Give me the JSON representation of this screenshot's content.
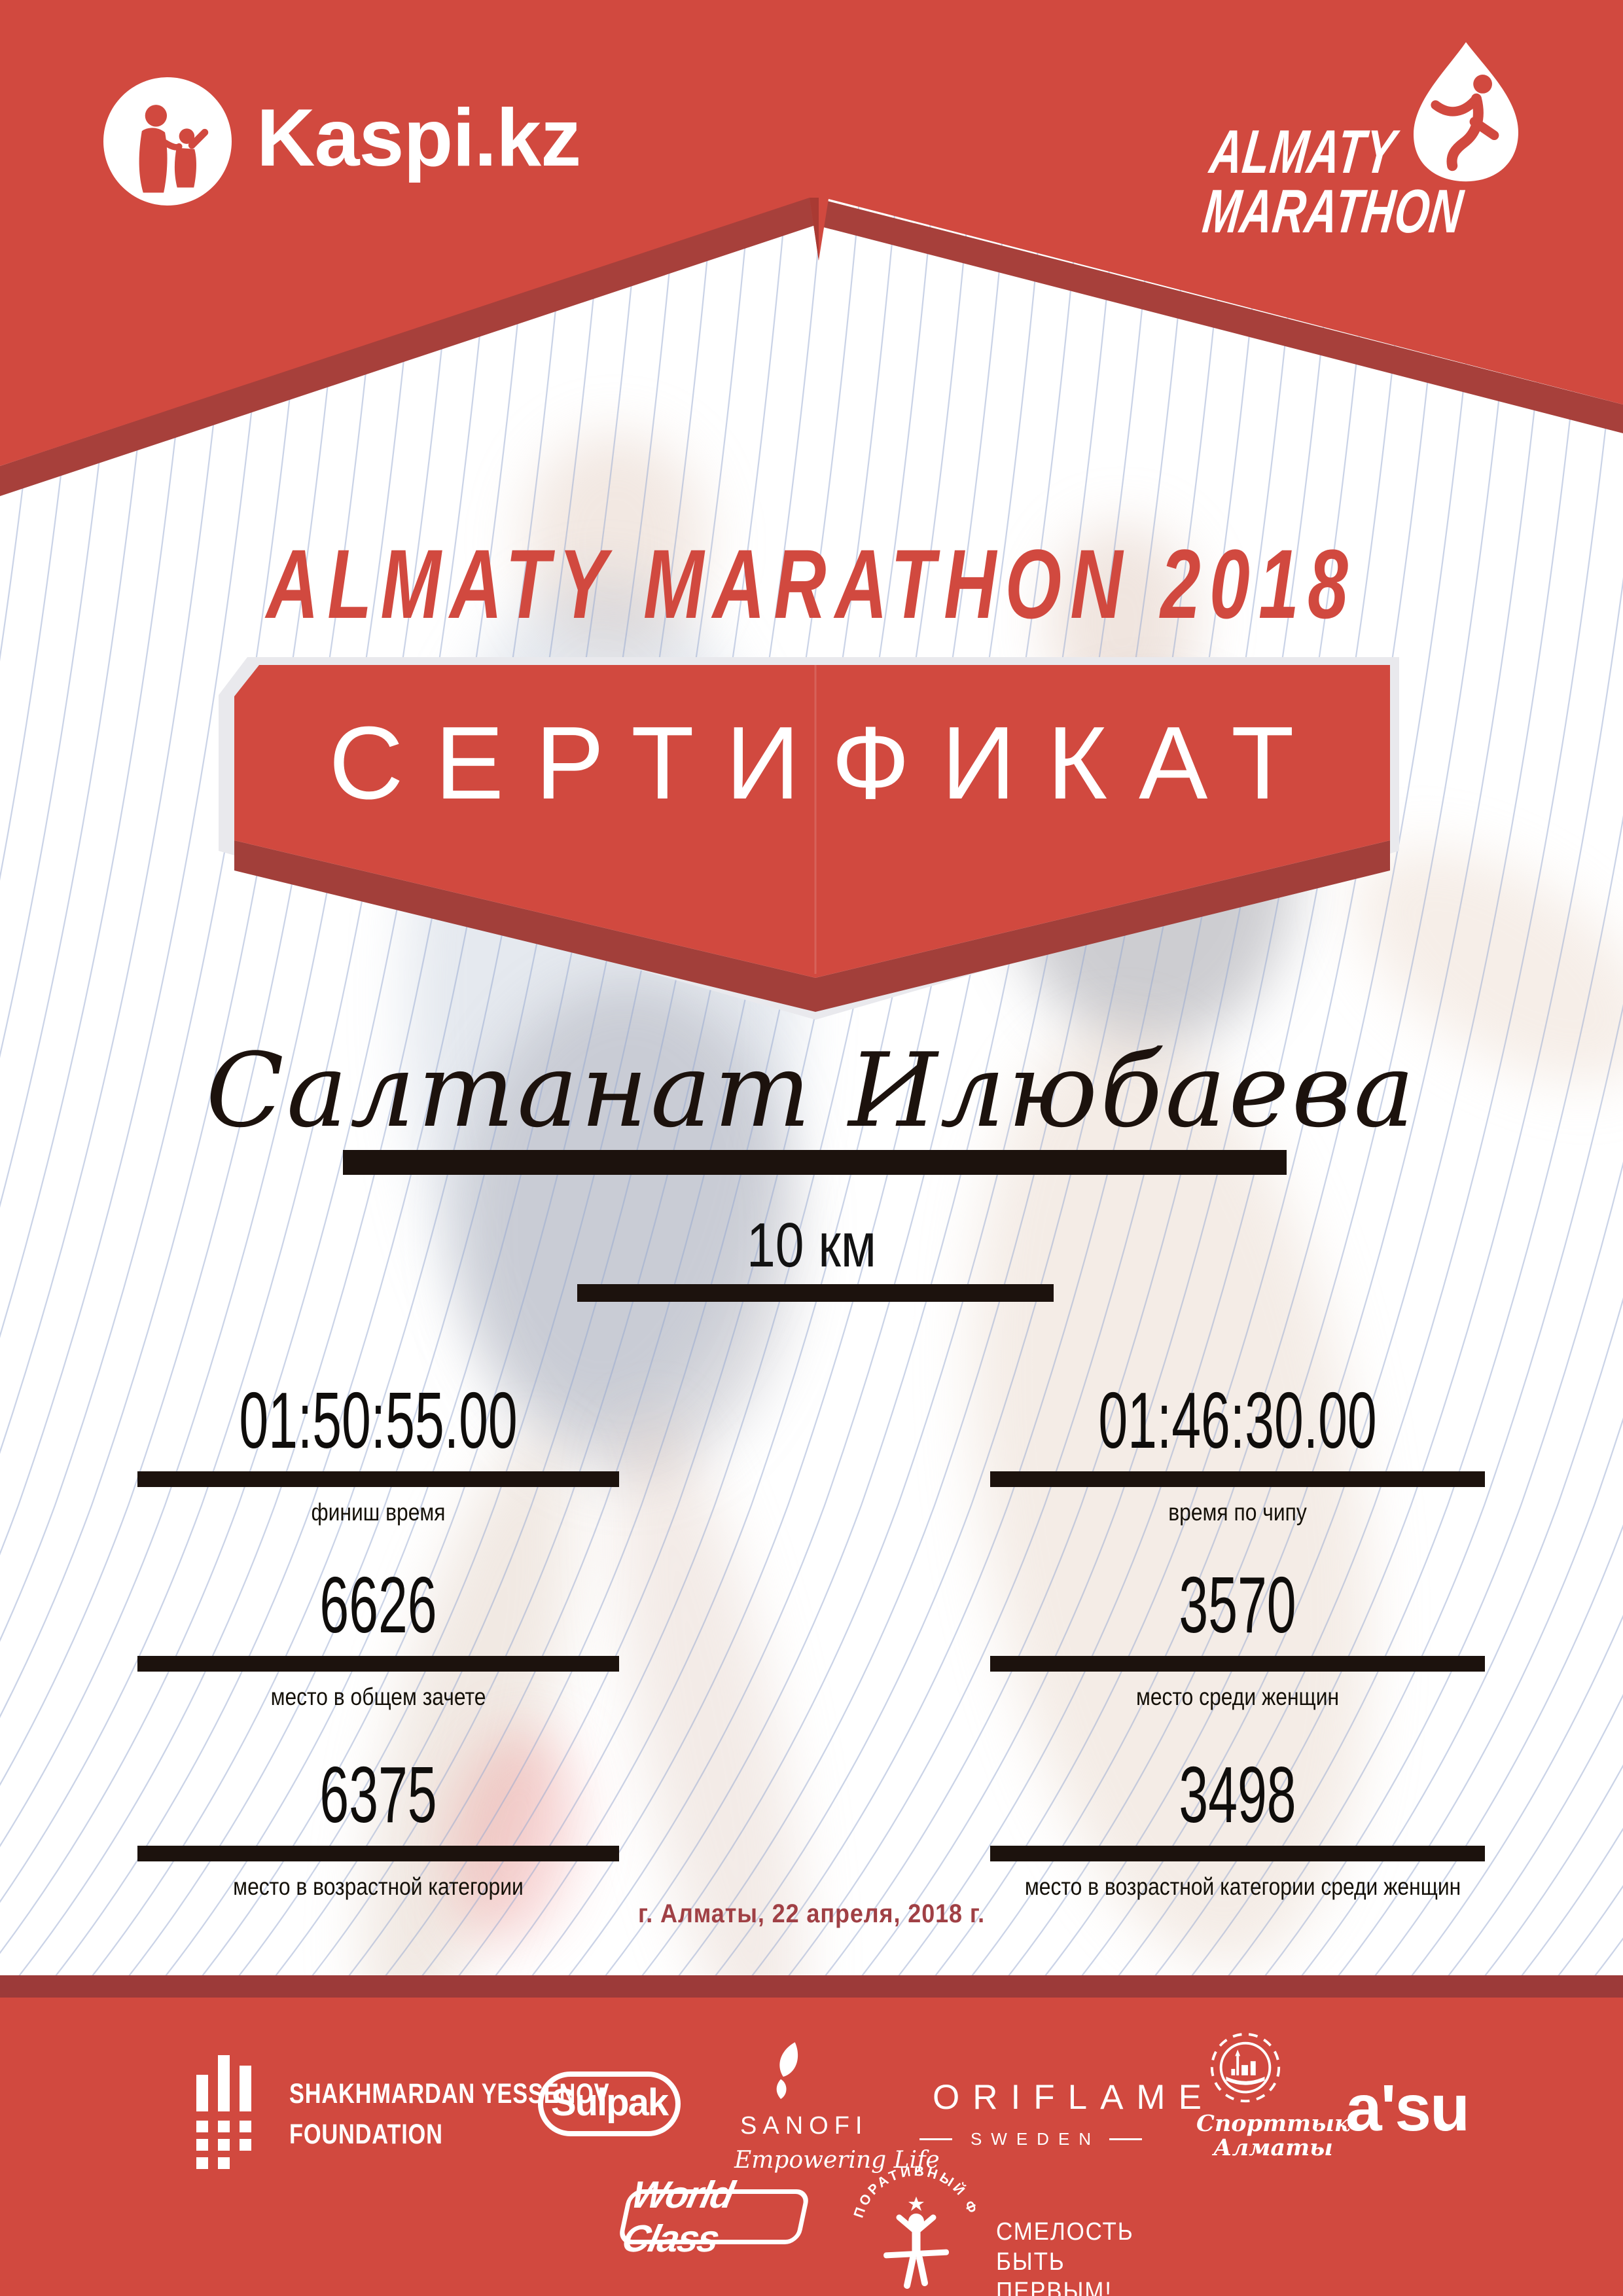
{
  "certificate": {
    "title": "ALMATY MARATHON 2018",
    "label": "СЕРТИФИКАТ",
    "name": "Салтанат Илюбаева",
    "distance": "10 км",
    "date": "г. Алматы, 22 апреля, 2018 г."
  },
  "header": {
    "kaspi": "Kaspi.kz",
    "marathon_line1": "ALMATY",
    "marathon_line2": "MARATHON"
  },
  "stats": {
    "finish_time": {
      "value": "01:50:55.00",
      "label": "финиш время"
    },
    "chip_time": {
      "value": "01:46:30.00",
      "label": "время по чипу"
    },
    "overall_place": {
      "value": "6626",
      "label": "место в общем зачете"
    },
    "women_place": {
      "value": "3570",
      "label": "место среди женщин"
    },
    "age_place": {
      "value": "6375",
      "label": "место в возрастной категории"
    },
    "age_women_place": {
      "value": "3498",
      "label": "место в возрастной категории среди женщин"
    }
  },
  "sponsors": {
    "yessenov": {
      "line1": "SHAKHMARDAN YESSENOV",
      "line2": "FOUNDATION"
    },
    "sulpak": "Sulpak",
    "sanofi": {
      "name": "SANOFI",
      "tagline": "Empowering Life"
    },
    "oriflame": {
      "name": "ORIFLAME",
      "sub": "SWEDEN"
    },
    "sporttyk": {
      "line1": "Спорттык",
      "line2": "Алматы"
    },
    "asu": "a'su",
    "worldclass": "World Class",
    "fond": {
      "arc": "КОРПОРАТИВНЫЙ ФОНД",
      "slogan1": "СМЕЛОСТЬ",
      "slogan2": "БЫТЬ",
      "slogan3": "ПЕРВЫМ!"
    }
  },
  "colors": {
    "red": "#d1493f",
    "dark_stripe": "#9c3a39",
    "shadow_band": "#a7403b",
    "fold": "#a23f3a",
    "date_red": "#a04045",
    "ink": "#1c120d",
    "line_blue": "#96a7d0",
    "gray_backing": "#e9e9ed"
  }
}
